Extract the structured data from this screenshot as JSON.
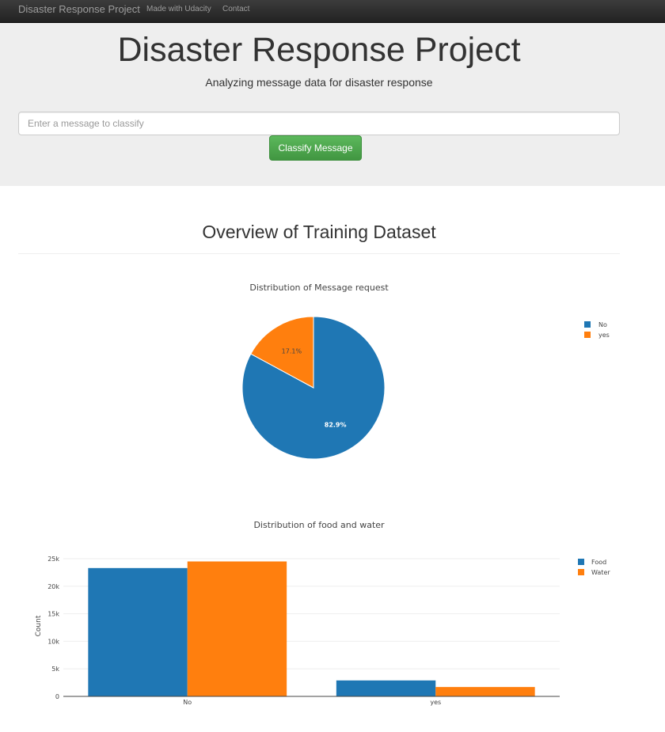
{
  "navbar": {
    "brand": "Disaster Response Project",
    "links": [
      "Made with Udacity",
      "Contact"
    ]
  },
  "jumbotron": {
    "title": "Disaster Response Project",
    "subtitle": "Analyzing message data for disaster response",
    "input_placeholder": "Enter a message to classify",
    "button_label": "Classify Message"
  },
  "section": {
    "title": "Overview of Training Dataset"
  },
  "colors": {
    "blue": "#1f77b4",
    "orange": "#ff7f0e"
  },
  "chart_data": [
    {
      "type": "pie",
      "title": "Distribution of Message request",
      "labels": [
        "No",
        "yes"
      ],
      "values": [
        82.9,
        17.1
      ],
      "value_labels": [
        "82.9%",
        "17.1%"
      ],
      "legend": "top-right"
    },
    {
      "type": "bar",
      "title": "Distribution of food and water",
      "categories": [
        "No",
        "yes"
      ],
      "series": [
        {
          "name": "Food",
          "values": [
            23300,
            2900
          ]
        },
        {
          "name": "Water",
          "values": [
            24500,
            1700
          ]
        }
      ],
      "ylabel": "Count",
      "ylim": [
        0,
        25000
      ],
      "yticks": [
        0,
        5000,
        10000,
        15000,
        20000,
        25000
      ],
      "ytick_labels": [
        "0",
        "5k",
        "10k",
        "15k",
        "20k",
        "25k"
      ],
      "grid": true,
      "legend": "top-right"
    }
  ]
}
